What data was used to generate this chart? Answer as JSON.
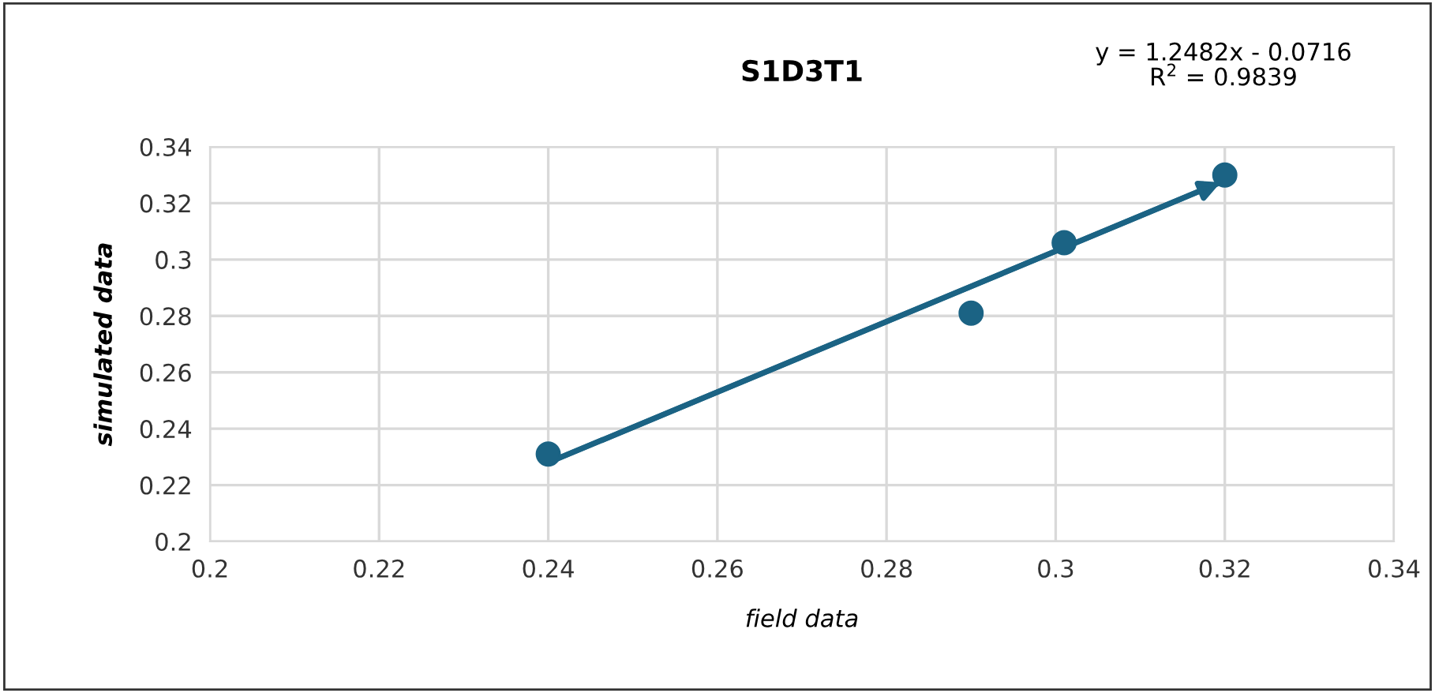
{
  "chart_data": {
    "type": "scatter",
    "title": "S1D3T1",
    "xlabel": "field data",
    "ylabel": "simulated data",
    "annotations": [
      "y = 1.2482x - 0.0716\nR$^{2}$ = 0.9839"
    ],
    "series": [
      {
        "color": "#1b6384",
        "x": [
          0.24,
          0.29,
          0.301,
          0.32
        ],
        "values": [
          0.231,
          0.281,
          0.306,
          0.33
        ],
        "marker": "circle"
      },
      {
        "type": "line",
        "color": "#1b6384",
        "x": [
          0.24,
          0.32
        ],
        "values": [
          0.228,
          0.328
        ],
        "marker": "none",
        "line_style": "solid"
      }
    ],
    "xlim": [
      0.2,
      0.34
    ],
    "xticks": [
      0.2,
      0.22,
      0.24,
      0.26,
      0.28,
      0.3,
      0.32,
      0.34
    ],
    "ylim": [
      0.2,
      0.34
    ],
    "yticks": [
      0.2,
      0.22,
      0.24,
      0.26,
      0.28,
      0.3,
      0.32,
      0.34
    ],
    "grid": true,
    "legend": false
  }
}
